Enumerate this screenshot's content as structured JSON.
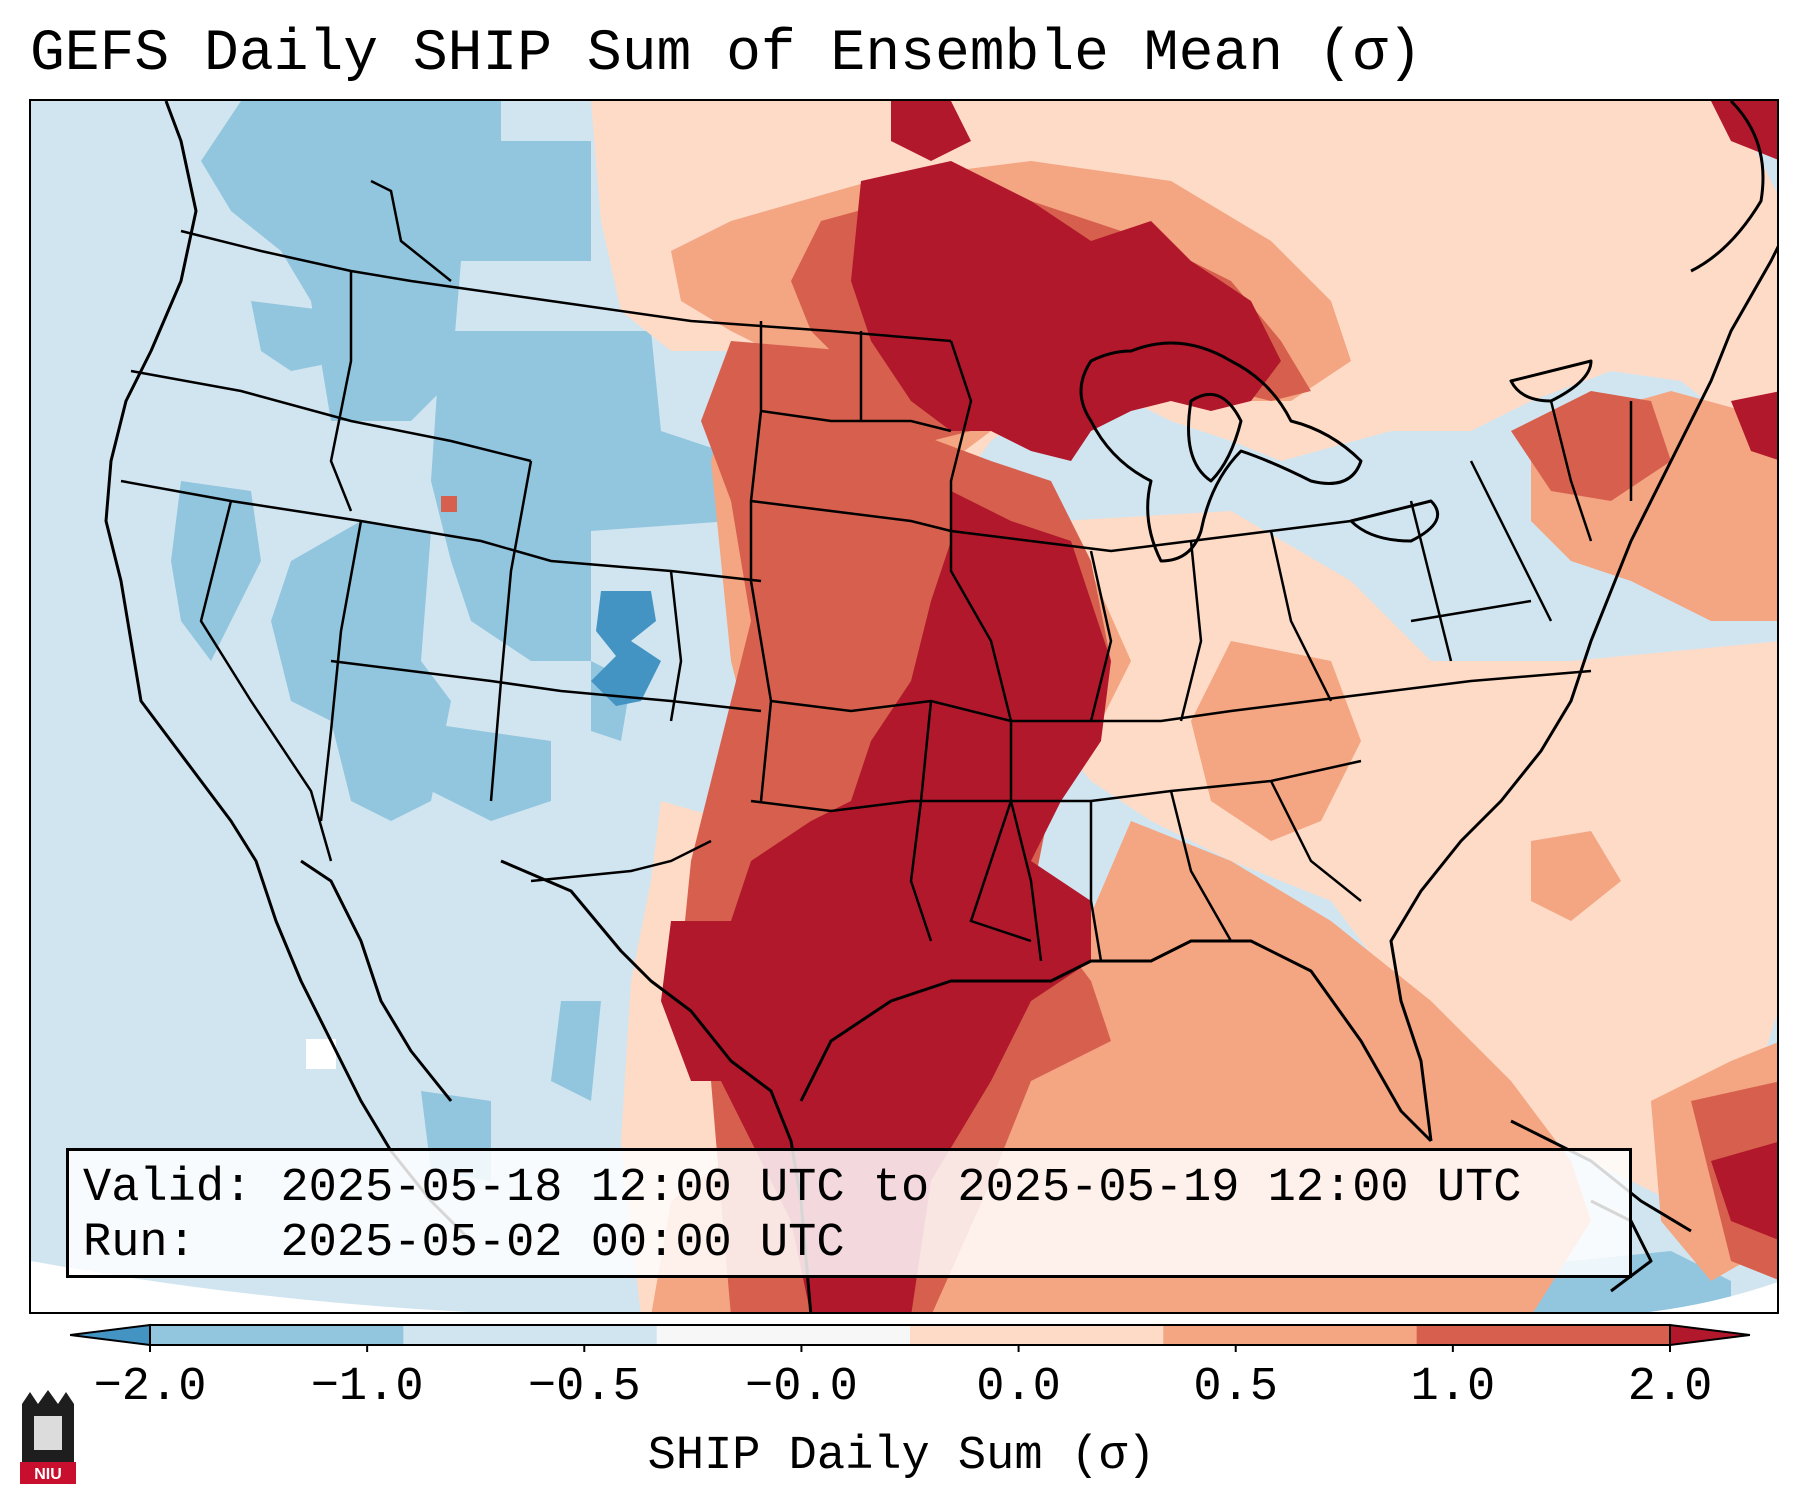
{
  "title": "GEFS Daily SHIP Sum of Ensemble Mean (σ)",
  "info": {
    "valid_label": "Valid:",
    "valid_value": "2025-05-18 12:00 UTC to 2025-05-19 12:00 UTC",
    "run_label": "Run:",
    "run_value": "2025-05-02 00:00 UTC"
  },
  "colorbar": {
    "label": "SHIP Daily Sum (σ)",
    "ticks": [
      "−2.0",
      "−1.0",
      "−0.5",
      "−0.0",
      "0.0",
      "0.5",
      "1.0",
      "2.0"
    ],
    "colors": [
      "#4393c3",
      "#92c5de",
      "#d1e5f0",
      "#f7f7f7",
      "#fddbc7",
      "#f4a582",
      "#d6604d",
      "#b2182b"
    ],
    "extend": "both"
  },
  "logo": {
    "text": "NIU"
  },
  "map": {
    "region": "Contiguous United States",
    "palette": {
      "strong_negative": "#4393c3",
      "moderate_negative": "#92c5de",
      "weak_negative": "#d1e5f0",
      "weak_positive": "#fddbc7",
      "moderate_positive": "#f4a582",
      "strong_positive": "#d6604d",
      "very_strong_positive": "#b2182b",
      "land_outline": "#000000"
    }
  }
}
